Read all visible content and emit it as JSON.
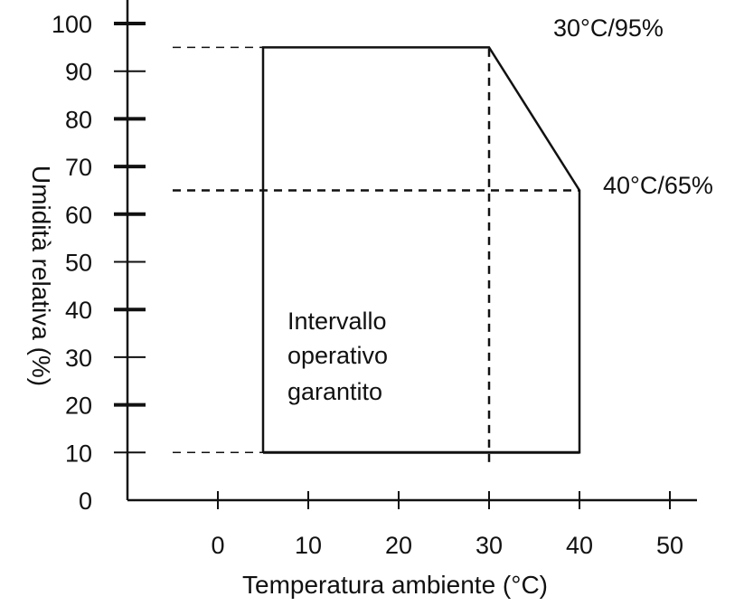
{
  "chart_data": {
    "type": "line",
    "title": "",
    "xlabel": "Temperatura ambiente (°C)",
    "ylabel": "Umidità relativa (%)",
    "xlim": [
      -10,
      53
    ],
    "ylim": [
      0,
      105
    ],
    "x_ticks": [
      0,
      10,
      20,
      30,
      40,
      50
    ],
    "y_ticks": [
      0,
      10,
      20,
      30,
      40,
      50,
      60,
      70,
      80,
      90,
      100
    ],
    "grid": false,
    "series": [
      {
        "points": [
          [
            5,
            10
          ],
          [
            5,
            95
          ],
          [
            30,
            95
          ],
          [
            40,
            65
          ],
          [
            40,
            10
          ],
          [
            5,
            10
          ]
        ]
      }
    ],
    "reference_lines": [
      {
        "type": "horizontal",
        "y": 95,
        "x_from": -5,
        "x_to": 5
      },
      {
        "type": "horizontal",
        "y": 65,
        "x_from": -5,
        "x_to": 40
      },
      {
        "type": "horizontal",
        "y": 10,
        "x_from": -5,
        "x_to": 5
      },
      {
        "type": "vertical",
        "x": 30,
        "y_from": 8,
        "y_to": 95
      }
    ],
    "annotations": {
      "point_30_95": "30°C/95%",
      "point_40_65": "40°C/65%",
      "region_line1": "Intervallo",
      "region_line2": "operativo",
      "region_line3": "garantito"
    }
  }
}
